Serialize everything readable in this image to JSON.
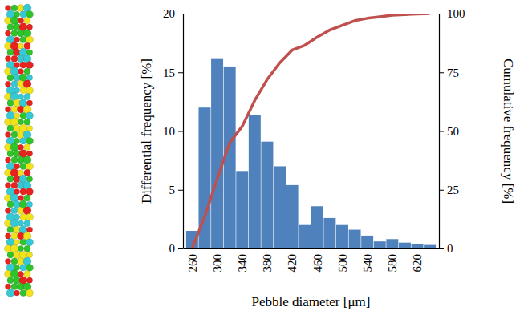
{
  "chart_data": {
    "type": "bar",
    "x_label": "Pebble diameter [μm]",
    "y_label": "Differential frequency [%]",
    "y2_label": "Cumulative frequency [%]",
    "categories": [
      "260",
      null,
      "300",
      null,
      "340",
      null,
      "380",
      null,
      "420",
      null,
      "460",
      null,
      "500",
      null,
      "540",
      null,
      "580",
      null,
      "620",
      null
    ],
    "series": [
      {
        "type": "bar",
        "color": "#4f81bd",
        "values": [
          1.5,
          12,
          16.2,
          15.5,
          6.6,
          11.4,
          9.1,
          7,
          5.4,
          2,
          3.6,
          2.6,
          2,
          1.6,
          1.1,
          0.6,
          0.8,
          0.5,
          0.4,
          0.3
        ]
      },
      {
        "type": "line",
        "axis": "y2",
        "color": "#c0504d",
        "values": [
          0,
          13.5,
          29.5,
          45,
          52,
          63,
          72,
          79,
          84.5,
          86.5,
          90,
          93,
          95,
          97,
          98,
          98.6,
          99.3,
          99.6,
          99.8,
          100
        ]
      }
    ],
    "ylim": [
      0,
      20
    ],
    "yticks": [
      0,
      5,
      10,
      15,
      20
    ],
    "y2lim": [
      0,
      100
    ],
    "y2ticks": [
      0,
      25,
      50,
      75,
      100
    ],
    "grid": false
  }
}
